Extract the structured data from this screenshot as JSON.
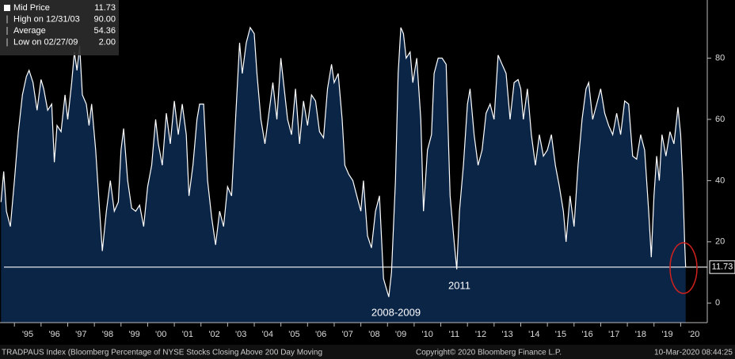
{
  "chart_data": {
    "type": "area",
    "title": null,
    "legend": [
      {
        "name": "Mid Price",
        "value": "11.73"
      },
      {
        "name": "High on 12/31/03",
        "value": "90.00"
      },
      {
        "name": "Average",
        "value": "54.36"
      },
      {
        "name": "Low on 02/27/09",
        "value": "2.00"
      }
    ],
    "series": [
      {
        "name": "TRADPAUS Index",
        "color": "#ffffff",
        "fill": "#0b2547",
        "x": [
          1994.5,
          1994.6,
          1994.7,
          1994.85,
          1995.0,
          1995.15,
          1995.3,
          1995.45,
          1995.55,
          1995.7,
          1995.85,
          1996.0,
          1996.1,
          1996.25,
          1996.4,
          1996.5,
          1996.6,
          1996.75,
          1996.9,
          1997.0,
          1997.15,
          1997.25,
          1997.35,
          1997.45,
          1997.55,
          1997.7,
          1997.8,
          1997.9,
          1998.05,
          1998.2,
          1998.3,
          1998.45,
          1998.6,
          1998.75,
          1998.9,
          1999.0,
          1999.1,
          1999.25,
          1999.4,
          1999.55,
          1999.7,
          1999.85,
          2000.0,
          2000.15,
          2000.3,
          2000.4,
          2000.55,
          2000.7,
          2000.85,
          2001.0,
          2001.15,
          2001.3,
          2001.45,
          2001.55,
          2001.7,
          2001.85,
          2001.95,
          2002.1,
          2002.25,
          2002.4,
          2002.55,
          2002.7,
          2002.85,
          2003.0,
          2003.15,
          2003.3,
          2003.45,
          2003.55,
          2003.7,
          2003.85,
          2004.0,
          2004.1,
          2004.25,
          2004.4,
          2004.55,
          2004.7,
          2004.85,
          2005.0,
          2005.1,
          2005.25,
          2005.4,
          2005.55,
          2005.7,
          2005.85,
          2006.0,
          2006.15,
          2006.3,
          2006.45,
          2006.6,
          2006.75,
          2006.9,
          2007.0,
          2007.15,
          2007.3,
          2007.4,
          2007.55,
          2007.7,
          2007.85,
          2008.0,
          2008.1,
          2008.25,
          2008.4,
          2008.55,
          2008.7,
          2008.85,
          2008.95,
          2009.05,
          2009.15,
          2009.3,
          2009.4,
          2009.5,
          2009.6,
          2009.7,
          2009.85,
          2009.95,
          2010.1,
          2010.25,
          2010.35,
          2010.5,
          2010.65,
          2010.75,
          2010.9,
          2011.05,
          2011.2,
          2011.35,
          2011.5,
          2011.6,
          2011.7,
          2011.85,
          2012.0,
          2012.1,
          2012.25,
          2012.4,
          2012.55,
          2012.7,
          2012.85,
          2013.0,
          2013.15,
          2013.3,
          2013.45,
          2013.6,
          2013.75,
          2013.9,
          2014.0,
          2014.1,
          2014.25,
          2014.4,
          2014.55,
          2014.7,
          2014.85,
          2015.0,
          2015.15,
          2015.3,
          2015.45,
          2015.6,
          2015.7,
          2015.85,
          2016.0,
          2016.15,
          2016.3,
          2016.45,
          2016.55,
          2016.7,
          2016.85,
          2017.0,
          2017.15,
          2017.3,
          2017.45,
          2017.6,
          2017.75,
          2017.9,
          2018.05,
          2018.2,
          2018.35,
          2018.5,
          2018.65,
          2018.8,
          2018.9,
          2019.0,
          2019.1,
          2019.2,
          2019.3,
          2019.45,
          2019.6,
          2019.75,
          2019.9,
          2020.0,
          2020.08,
          2020.15,
          2020.19
        ],
        "values": [
          33,
          43,
          30,
          25,
          40,
          56,
          68,
          74,
          76,
          72,
          63,
          73,
          70,
          63,
          65,
          46,
          58,
          56,
          68,
          60,
          72,
          82,
          76,
          84,
          68,
          65,
          58,
          65,
          50,
          30,
          17,
          30,
          40,
          30,
          33,
          50,
          57,
          40,
          31,
          30,
          32,
          25,
          38,
          45,
          60,
          52,
          45,
          62,
          52,
          66,
          55,
          65,
          55,
          35,
          45,
          60,
          65,
          65,
          40,
          28,
          19,
          30,
          25,
          38,
          35,
          60,
          85,
          75,
          85,
          90,
          88,
          75,
          60,
          52,
          62,
          72,
          60,
          80,
          72,
          60,
          55,
          70,
          52,
          66,
          58,
          68,
          66,
          56,
          54,
          70,
          78,
          72,
          75,
          60,
          45,
          42,
          40,
          35,
          30,
          40,
          22,
          18,
          30,
          35,
          8,
          5,
          2,
          10,
          40,
          75,
          90,
          88,
          80,
          82,
          72,
          80,
          60,
          30,
          50,
          55,
          75,
          80,
          80,
          78,
          35,
          20,
          11,
          30,
          45,
          65,
          70,
          55,
          45,
          50,
          62,
          65,
          60,
          81,
          78,
          75,
          60,
          72,
          73,
          70,
          60,
          70,
          55,
          45,
          55,
          48,
          50,
          55,
          45,
          38,
          30,
          20,
          35,
          25,
          45,
          60,
          70,
          72,
          60,
          65,
          70,
          62,
          58,
          55,
          62,
          55,
          66,
          65,
          48,
          47,
          55,
          50,
          30,
          15,
          35,
          48,
          40,
          55,
          48,
          56,
          52,
          64,
          55,
          40,
          20,
          11.73
        ]
      }
    ],
    "reference_line": 11.73,
    "xlim": [
      1994.46,
      2021.0
    ],
    "xticks": [
      {
        "value": 1995.5,
        "label": "'95"
      },
      {
        "value": 1996.5,
        "label": "'96"
      },
      {
        "value": 1997.5,
        "label": "'97"
      },
      {
        "value": 1998.5,
        "label": "'98"
      },
      {
        "value": 1999.5,
        "label": "'99"
      },
      {
        "value": 2000.5,
        "label": "'00"
      },
      {
        "value": 2001.5,
        "label": "'01"
      },
      {
        "value": 2002.5,
        "label": "'02"
      },
      {
        "value": 2003.5,
        "label": "'03"
      },
      {
        "value": 2004.5,
        "label": "'04"
      },
      {
        "value": 2005.5,
        "label": "'05"
      },
      {
        "value": 2006.5,
        "label": "'06"
      },
      {
        "value": 2007.5,
        "label": "'07"
      },
      {
        "value": 2008.5,
        "label": "'08"
      },
      {
        "value": 2009.5,
        "label": "'09"
      },
      {
        "value": 2010.5,
        "label": "'10"
      },
      {
        "value": 2011.5,
        "label": "'11"
      },
      {
        "value": 2012.5,
        "label": "'12"
      },
      {
        "value": 2013.5,
        "label": "'13"
      },
      {
        "value": 2014.5,
        "label": "'14"
      },
      {
        "value": 2015.5,
        "label": "'15"
      },
      {
        "value": 2016.5,
        "label": "'16"
      },
      {
        "value": 2017.5,
        "label": "'17"
      },
      {
        "value": 2018.5,
        "label": "'18"
      },
      {
        "value": 2019.5,
        "label": "'19"
      },
      {
        "value": 2020.5,
        "label": "'20"
      }
    ],
    "ylim": [
      -6.4,
      99
    ],
    "yticks": [
      0,
      20,
      40,
      60,
      80
    ],
    "grid": false,
    "annotations": [
      "2008-2009",
      "2011"
    ],
    "footer": [
      "TRADPAUS Index (Bloomberg Percentage of NYSE Stocks Closing Above 200 Day Moving",
      "Copyright© 2020 Bloomberg Finance L.P.",
      "10-Mar-2020 08:44:25"
    ]
  }
}
